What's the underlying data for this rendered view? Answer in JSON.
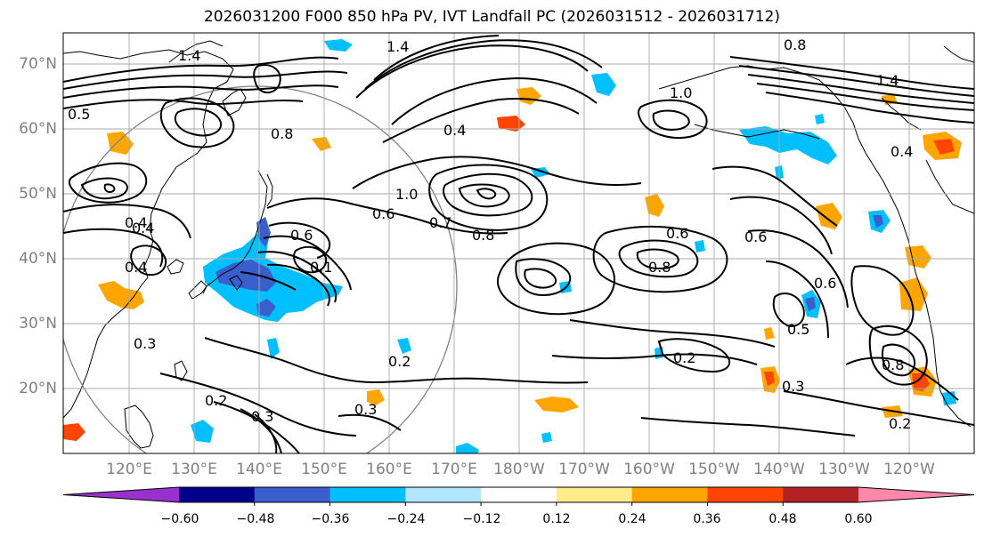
{
  "title": "2026031200 F000 850 hPa PV, IVT Landfall PC (2026031512 - 2026031712)",
  "lat_labels": [
    "70°N",
    "60°N",
    "50°N",
    "40°N",
    "30°N",
    "20°N"
  ],
  "lon_labels": [
    "120°E",
    "130°E",
    "140°E",
    "150°E",
    "160°E",
    "170°E",
    "180°W",
    "170°W",
    "160°W",
    "150°W",
    "140°W",
    "130°W",
    "120°W"
  ],
  "colorbar": {
    "colors": [
      "#9932cc",
      "#00008b",
      "#3a5fcd",
      "#00bfff",
      "#b2e6ff",
      "#ffffff",
      "#ffeb8a",
      "#ffa500",
      "#ff4500",
      "#b22222",
      "#ff88aa"
    ],
    "tick_labels": [
      "−0.60",
      "−0.48",
      "−0.36",
      "−0.24",
      "−0.12",
      "0.12",
      "0.24",
      "0.36",
      "0.48",
      "0.60"
    ]
  },
  "contour_labels": [
    {
      "text": "1.4"
    },
    {
      "text": "0.5"
    },
    {
      "text": "1.4"
    },
    {
      "text": "1.0"
    },
    {
      "text": "0.4"
    },
    {
      "text": "1.0"
    },
    {
      "text": "0.6"
    },
    {
      "text": "0.8"
    },
    {
      "text": "0.6"
    },
    {
      "text": "0.7"
    },
    {
      "text": "0.8"
    },
    {
      "text": "0.6"
    },
    {
      "text": "0.8"
    },
    {
      "text": "0.4"
    },
    {
      "text": "0.3"
    },
    {
      "text": "0.2"
    },
    {
      "text": "0.2"
    },
    {
      "text": "0.3"
    },
    {
      "text": "0.3"
    },
    {
      "text": "0.2"
    },
    {
      "text": "0.3"
    },
    {
      "text": "0.5"
    },
    {
      "text": "0.2"
    },
    {
      "text": "0.6"
    },
    {
      "text": "0.8"
    },
    {
      "text": "0.4"
    },
    {
      "text": "0.8"
    },
    {
      "text": "0.4"
    },
    {
      "text": "0.1"
    },
    {
      "text": "0.6"
    },
    {
      "text": "1.4"
    },
    {
      "text": "0.4"
    }
  ]
}
